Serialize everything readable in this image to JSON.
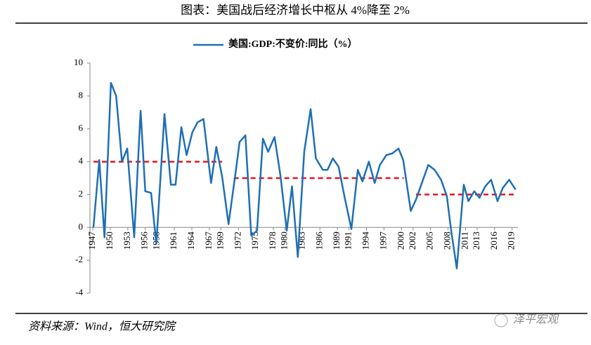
{
  "chart_data": {
    "type": "line",
    "title": "图表：美国战后经济增长中枢从 4%降至 2%",
    "source": "资料来源：Wind，恒大研究院",
    "watermark": "泽平宏观",
    "x": [
      1947.1,
      1948.1,
      1949.0,
      1950.1,
      1951.0,
      1952.0,
      1952.9,
      1954.1,
      1955.2,
      1956.0,
      1957.0,
      1957.9,
      1959.3,
      1960.4,
      1961.2,
      1962.2,
      1963.1,
      1964.1,
      1965.0,
      1966.0,
      1967.3,
      1968.2,
      1969.2,
      1970.3,
      1971.5,
      1972.2,
      1973.2,
      1974.2,
      1975.2,
      1976.2,
      1977.1,
      1978.2,
      1979.2,
      1980.3,
      1981.2,
      1982.2,
      1983.3,
      1984.4,
      1985.3,
      1986.5,
      1987.3,
      1988.2,
      1989.2,
      1990.2,
      1991.4,
      1992.5,
      1993.3,
      1994.4,
      1995.4,
      1996.3,
      1997.4,
      1998.4,
      1999.5,
      2000.3,
      2001.6,
      2002.5,
      2003.7,
      2004.6,
      2005.7,
      2006.8,
      2007.8,
      2008.5,
      2009.5,
      2010.7,
      2011.5,
      2012.5,
      2013.4,
      2014.4,
      2015.4,
      2016.5,
      2017.4,
      2018.5,
      2019.6
    ],
    "series": [
      {
        "name": "美国:GDP:不变价:同比（%）",
        "color": "#1f6fb5",
        "values": [
          0,
          4.1,
          -0.6,
          8.8,
          8.0,
          4.0,
          4.8,
          -0.6,
          7.1,
          2.2,
          2.1,
          -1.0,
          6.9,
          2.6,
          2.6,
          6.1,
          4.4,
          5.8,
          6.4,
          6.6,
          2.7,
          4.9,
          3.1,
          0.2,
          3.3,
          5.2,
          5.6,
          -0.5,
          -0.2,
          5.4,
          4.6,
          5.5,
          3.2,
          -0.2,
          2.5,
          -1.8,
          4.6,
          7.2,
          4.2,
          3.5,
          3.5,
          4.2,
          3.7,
          1.9,
          -0.1,
          3.5,
          2.8,
          4.0,
          2.7,
          3.8,
          4.4,
          4.5,
          4.8,
          4.1,
          1.0,
          1.7,
          2.9,
          3.8,
          3.5,
          2.9,
          1.9,
          -0.1,
          -2.5,
          2.6,
          1.6,
          2.2,
          1.8,
          2.5,
          2.9,
          1.6,
          2.4,
          2.9,
          2.3
        ]
      }
    ],
    "reference_lines": [
      {
        "y": 4,
        "x0": 1947.1,
        "x1": 1969.2,
        "color": "#e8141b"
      },
      {
        "y": 3,
        "x0": 1971.2,
        "x1": 2000.4,
        "color": "#e8141b"
      },
      {
        "y": 2,
        "x0": 2002.5,
        "x1": 2019.8,
        "color": "#e8141b"
      }
    ],
    "xlim": [
      1946.5,
      2020
    ],
    "xticks": [
      1947,
      1950,
      1953,
      1956,
      1958,
      1961,
      1964,
      1967,
      1969,
      1972,
      1975,
      1978,
      1980,
      1983,
      1986,
      1989,
      1991,
      1994,
      1997,
      2000,
      2002,
      2005,
      2008,
      2011,
      2013,
      2016,
      2019
    ],
    "ylim": [
      -4,
      10
    ],
    "yticks": [
      -4,
      -2,
      0,
      2,
      4,
      6,
      8,
      10
    ]
  }
}
